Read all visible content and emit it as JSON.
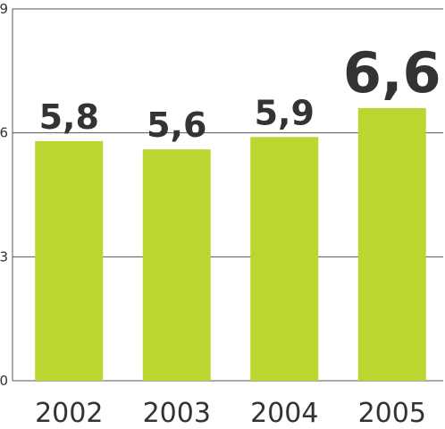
{
  "chart_data": {
    "type": "bar",
    "categories": [
      "2002",
      "2003",
      "2004",
      "2005"
    ],
    "values": [
      5.8,
      5.6,
      5.9,
      6.6
    ],
    "data_labels": [
      "5,8",
      "5,6",
      "5,9",
      "6,6"
    ],
    "highlight_index": 3,
    "ylim": [
      0,
      9
    ],
    "yticks": [
      0,
      3,
      6,
      9
    ],
    "grid": true,
    "bar_color": "#bcd531",
    "highlight_label_color": "#cc2b5a",
    "label_color": "#333333"
  }
}
